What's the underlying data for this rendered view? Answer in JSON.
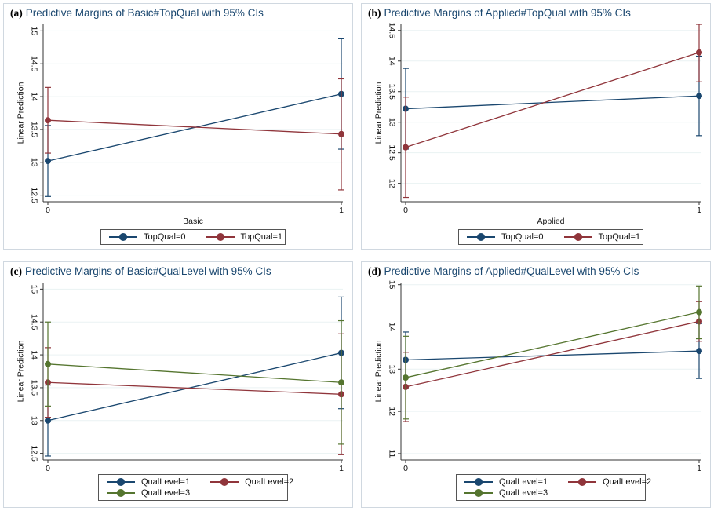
{
  "colors": {
    "blue": "#1a476f",
    "red": "#90353b",
    "green": "#55752f"
  },
  "chart_data": [
    {
      "id": "a",
      "panel_label": "(a)",
      "title": "Predictive Margins of Basic#TopQual with 95% CIs",
      "type": "line",
      "xlabel": "Basic",
      "ylabel": "Linear Prediction",
      "x": [
        0,
        1
      ],
      "ylim": [
        12.4,
        15.1
      ],
      "yticks": [
        "12.5",
        "13",
        "13.5",
        "14",
        "14.5",
        "15"
      ],
      "legend_position": "bottom",
      "series": [
        {
          "name": "TopQual=0",
          "color": "#1a476f",
          "values": [
            13.02,
            14.04
          ],
          "ci_low": [
            12.48,
            13.2
          ],
          "ci_high": [
            13.56,
            14.88
          ]
        },
        {
          "name": "TopQual=1",
          "color": "#90353b",
          "values": [
            13.64,
            13.43
          ],
          "ci_low": [
            13.14,
            12.58
          ],
          "ci_high": [
            14.14,
            14.27
          ]
        }
      ]
    },
    {
      "id": "b",
      "panel_label": "(b)",
      "title": "Predictive Margins of Applied#TopQual with 95% CIs",
      "type": "line",
      "xlabel": "Applied",
      "ylabel": "Linear Prediction",
      "x": [
        0,
        1
      ],
      "ylim": [
        11.7,
        14.6
      ],
      "yticks": [
        "12",
        "12.5",
        "13",
        "13.5",
        "14",
        "14.5"
      ],
      "legend_position": "bottom",
      "series": [
        {
          "name": "TopQual=0",
          "color": "#1a476f",
          "values": [
            13.22,
            13.43
          ],
          "ci_low": [
            12.56,
            12.78
          ],
          "ci_high": [
            13.88,
            14.08
          ]
        },
        {
          "name": "TopQual=1",
          "color": "#90353b",
          "values": [
            12.59,
            14.14
          ],
          "ci_low": [
            11.77,
            13.66
          ],
          "ci_high": [
            13.41,
            14.6
          ]
        }
      ]
    },
    {
      "id": "c",
      "panel_label": "(c)",
      "title": "Predictive Margins of Basic#QualLevel with 95% CIs",
      "type": "line",
      "xlabel": "Basic",
      "ylabel": "Linear Prediction",
      "x": [
        0,
        1
      ],
      "ylim": [
        12.4,
        15.1
      ],
      "yticks": [
        "12.5",
        "13",
        "13.5",
        "14",
        "14.5",
        "15"
      ],
      "legend_position": "bottom",
      "series": [
        {
          "name": "QualLevel=1",
          "color": "#1a476f",
          "values": [
            13.0,
            14.03
          ],
          "ci_low": [
            12.46,
            13.18
          ],
          "ci_high": [
            13.54,
            14.88
          ]
        },
        {
          "name": "QualLevel=2",
          "color": "#90353b",
          "values": [
            13.58,
            13.4
          ],
          "ci_low": [
            13.05,
            12.48
          ],
          "ci_high": [
            14.11,
            14.32
          ]
        },
        {
          "name": "QualLevel=3",
          "color": "#55752f",
          "values": [
            13.86,
            13.58
          ],
          "ci_low": [
            13.22,
            12.64
          ],
          "ci_high": [
            14.5,
            14.52
          ]
        }
      ]
    },
    {
      "id": "d",
      "panel_label": "(d)",
      "title": "Predictive Margins of Applied#QualLevel with 95% CIs",
      "type": "line",
      "xlabel": "Applied",
      "ylabel": "Linear Prediction",
      "x": [
        0,
        1
      ],
      "ylim": [
        10.85,
        15.05
      ],
      "yticks": [
        "11",
        "12",
        "13",
        "14",
        "15"
      ],
      "legend_position": "bottom",
      "series": [
        {
          "name": "QualLevel=1",
          "color": "#1a476f",
          "values": [
            13.22,
            13.43
          ],
          "ci_low": [
            12.56,
            12.78
          ],
          "ci_high": [
            13.88,
            14.08
          ]
        },
        {
          "name": "QualLevel=2",
          "color": "#90353b",
          "values": [
            12.58,
            14.13
          ],
          "ci_low": [
            11.76,
            13.66
          ],
          "ci_high": [
            13.4,
            14.6
          ]
        },
        {
          "name": "QualLevel=3",
          "color": "#55752f",
          "values": [
            12.8,
            14.35
          ],
          "ci_low": [
            11.82,
            13.72
          ],
          "ci_high": [
            13.78,
            14.97
          ]
        }
      ]
    }
  ]
}
